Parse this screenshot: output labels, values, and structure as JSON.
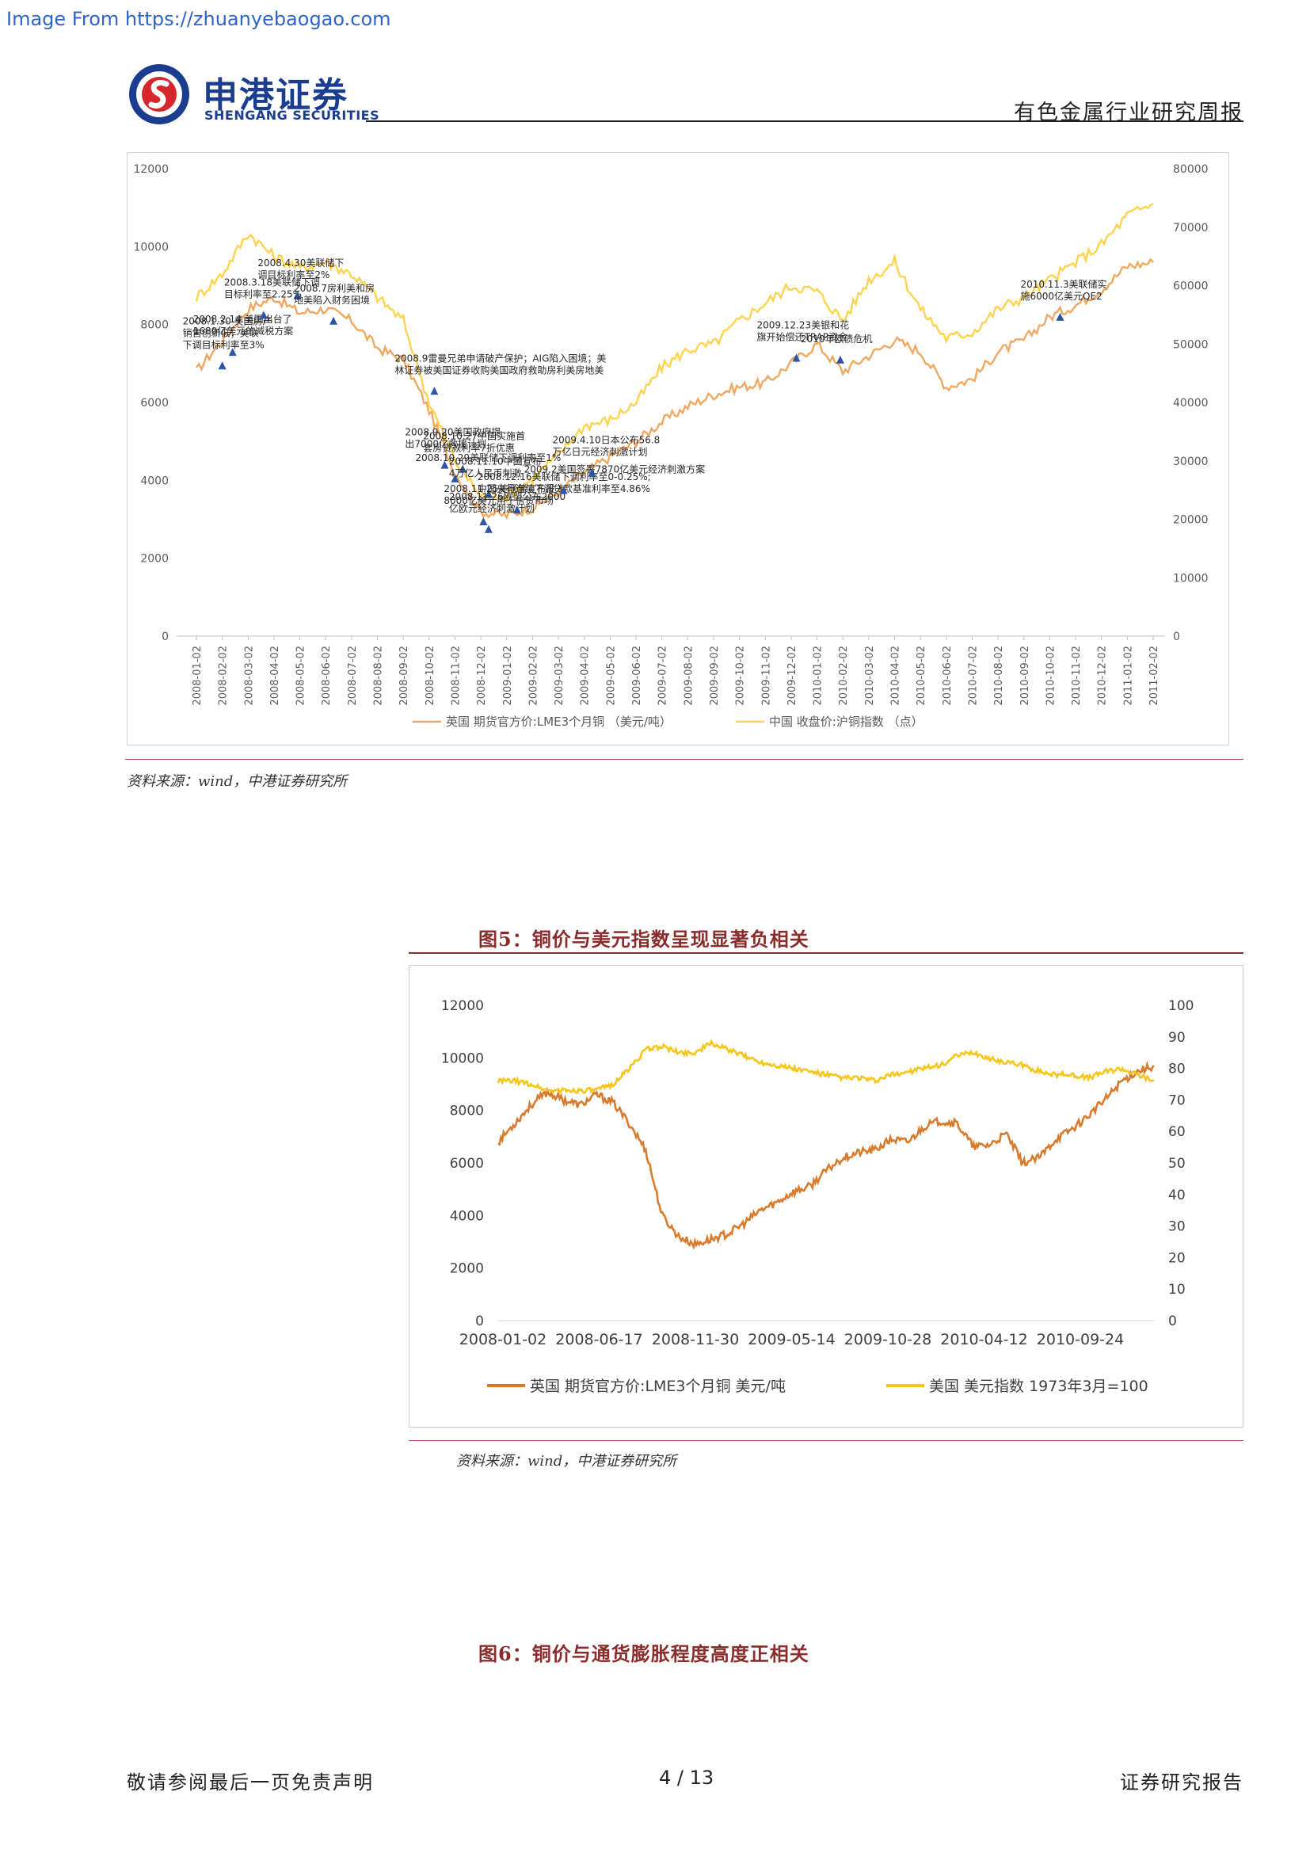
{
  "watermark": "Image From https://zhuanyebaogao.com",
  "header": {
    "logo_cn": "申港证券",
    "logo_en": "SHENGANG SECURITIES",
    "report_type": "有色金属行业研究周报"
  },
  "colors": {
    "copper": "#f0a860",
    "index": "#ffd34d",
    "copper2": "#d97b2c",
    "dollar": "#f5c518",
    "marker": "#2e55a4",
    "accent": "#8a2c2c"
  },
  "chart1": {
    "chart_data": {
      "type": "line",
      "left_axis": {
        "ticks": [
          "0",
          "2000",
          "4000",
          "6000",
          "8000",
          "10000",
          "12000"
        ],
        "range": [
          0,
          12000
        ]
      },
      "right_axis": {
        "ticks": [
          "0",
          "10000",
          "20000",
          "30000",
          "40000",
          "50000",
          "60000",
          "70000",
          "80000"
        ],
        "range": [
          0,
          80000
        ]
      },
      "x_ticks": [
        "2008-01-02",
        "2008-02-02",
        "2008-03-02",
        "2008-04-02",
        "2008-05-02",
        "2008-06-02",
        "2008-07-02",
        "2008-08-02",
        "2008-09-02",
        "2008-10-02",
        "2008-11-02",
        "2008-12-02",
        "2009-01-02",
        "2009-02-02",
        "2009-03-02",
        "2009-04-02",
        "2009-05-02",
        "2009-06-02",
        "2009-07-02",
        "2009-08-02",
        "2009-09-02",
        "2009-10-02",
        "2009-11-02",
        "2009-12-02",
        "2010-01-02",
        "2010-02-02",
        "2010-03-02",
        "2010-04-02",
        "2010-05-02",
        "2010-06-02",
        "2010-07-02",
        "2010-08-02",
        "2010-09-02",
        "2010-10-02",
        "2010-11-02",
        "2010-12-02",
        "2011-01-02",
        "2011-02-02"
      ],
      "series": [
        {
          "name": "英国 期货官方价:LME3个月铜 （美元/吨）",
          "axis": "left",
          "values": [
            6800,
            7600,
            8400,
            8700,
            8300,
            8400,
            8100,
            7400,
            7100,
            5800,
            4200,
            3200,
            3100,
            3300,
            3700,
            4200,
            4600,
            5000,
            5500,
            5900,
            6200,
            6400,
            6500,
            7000,
            7500,
            6800,
            7200,
            7600,
            7300,
            6400,
            6600,
            7300,
            7600,
            8200,
            8500,
            8900,
            9500,
            9600
          ]
        },
        {
          "name": "中国 收盘价:沪铜指数 （点）",
          "axis": "right",
          "values": [
            58000,
            62000,
            69000,
            65000,
            63000,
            64000,
            62000,
            58000,
            54000,
            40000,
            30000,
            24000,
            24000,
            27000,
            31000,
            36000,
            37000,
            40000,
            46000,
            49000,
            50000,
            54000,
            57000,
            60000,
            59000,
            54000,
            61000,
            64000,
            56000,
            51000,
            52000,
            56000,
            58000,
            61000,
            64000,
            67000,
            72000,
            74000
          ]
        }
      ],
      "annotations": [
        {
          "text": [
            "2008.1.30 美国房产",
            "销售创新低；美联",
            "下调目标利率至3%"
          ],
          "x": 1.0,
          "y": 6950
        },
        {
          "text": [
            "2008.2.14 美国出台了",
            "1680亿美元的减税方案"
          ],
          "x": 1.4,
          "y": 7300
        },
        {
          "text": [
            "2008.3.18美联储下调",
            "目标利率至2.25%"
          ],
          "x": 2.6,
          "y": 8250
        },
        {
          "text": [
            "2008.4.30美联储下",
            "调目标利率至2%"
          ],
          "x": 3.9,
          "y": 8750
        },
        {
          "text": [
            "2008.7房利美和房",
            "地美陷入财务困境"
          ],
          "x": 5.3,
          "y": 8100
        },
        {
          "text": [
            "2008.9雷曼兄弟申请破产保护；AIG陷入困境；美",
            "林证券被美国证券收购美国政府救助房利美房地美"
          ],
          "x": 9.2,
          "y": 6300
        },
        {
          "text": [
            "2008.9.20美国政府提",
            "出7000亿救援计划"
          ],
          "x": 9.6,
          "y": 4400
        },
        {
          "text": [
            "2008.10.29美联储下调利率至1%"
          ],
          "x": 10.0,
          "y": 4050
        },
        {
          "text": [
            "2008.10.27中国实施首",
            "套房贷款利率7折优惠"
          ],
          "x": 10.3,
          "y": 4300
        },
        {
          "text": [
            "2008.11.10中国宣布",
            "4万亿人民币刺激"
          ],
          "x": 11.3,
          "y": 3650
        },
        {
          "text": [
            "2008.11.25美联储宣布投入",
            "8000亿美元用于信贷市场"
          ],
          "x": 11.1,
          "y": 2950
        },
        {
          "text": [
            "2008.11.26欧盟公布2000",
            "亿欧元经济刺激计划"
          ],
          "x": 11.3,
          "y": 2750
        },
        {
          "text": [
            "2008.12.16美联储下调利率至0-0.25%;",
            "中国央行连续下调贷款基准利率至4.86%"
          ],
          "x": 12.4,
          "y": 3250
        },
        {
          "text": [
            "2009.2美国签署7870亿美元经济刺激方案"
          ],
          "x": 14.2,
          "y": 3750
        },
        {
          "text": [
            "2009.4.10日本公布56.8",
            "万亿日元经济刺激计划"
          ],
          "x": 15.3,
          "y": 4200
        },
        {
          "text": [
            "2009.12.23美银和花",
            "旗开始偿还TRAP资金"
          ],
          "x": 23.2,
          "y": 7150
        },
        {
          "text": [
            "2010年欧债危机"
          ],
          "x": 24.9,
          "y": 7100
        },
        {
          "text": [
            "2010.11.3美联储实",
            "施6000亿美元QE2"
          ],
          "x": 33.4,
          "y": 8200
        }
      ]
    }
  },
  "source1": "资料来源：wind，中港证券研究所",
  "fig5_title": "图5：铜价与美元指数呈现显著负相关",
  "chart2": {
    "chart_data": {
      "type": "line",
      "left_axis": {
        "ticks": [
          "0",
          "2000",
          "4000",
          "6000",
          "8000",
          "10000",
          "12000"
        ],
        "range": [
          0,
          12000
        ]
      },
      "right_axis": {
        "ticks": [
          "0",
          "10",
          "20",
          "30",
          "40",
          "50",
          "60",
          "70",
          "80",
          "90",
          "100"
        ],
        "range": [
          0,
          100
        ]
      },
      "x_ticks": [
        "2008-01-02",
        "2008-06-17",
        "2008-11-30",
        "2009-05-14",
        "2009-10-28",
        "2010-04-12",
        "2010-09-24"
      ],
      "x_range": [
        0,
        40
      ],
      "series": [
        {
          "name": "英国 期货官方价:LME3个月铜 美元/吨",
          "axis": "left",
          "values": [
            6800,
            7500,
            8200,
            8700,
            8400,
            8200,
            8600,
            8300,
            7500,
            6500,
            4000,
            3200,
            2900,
            3100,
            3300,
            3700,
            4200,
            4500,
            4900,
            5100,
            5700,
            6200,
            6400,
            6500,
            6900,
            6800,
            7400,
            7600,
            7500,
            6600,
            6700,
            7100,
            6000,
            6200,
            6900,
            7300,
            7800,
            8400,
            9100,
            9500,
            9700
          ]
        },
        {
          "name": "美国 美元指数 1973年3月=100",
          "axis": "right",
          "values": [
            76,
            76,
            75,
            73,
            73,
            73,
            73,
            75,
            80,
            86,
            87,
            85,
            85,
            88,
            86,
            84,
            82,
            81,
            80,
            79,
            78,
            77,
            77,
            76,
            78,
            79,
            80,
            81,
            84,
            85,
            83,
            82,
            81,
            79,
            78,
            78,
            77,
            79,
            80,
            78,
            76
          ]
        }
      ]
    }
  },
  "source2": "资料来源：wind，中港证券研究所",
  "fig6_title": "图6：铜价与通货膨胀程度高度正相关",
  "footer": {
    "left": "敬请参阅最后一页免责声明",
    "page": "4 / 13",
    "right": "证券研究报告"
  }
}
